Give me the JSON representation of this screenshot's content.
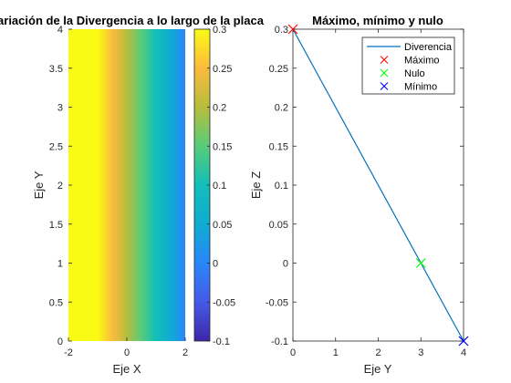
{
  "chart_data": [
    {
      "type": "heatmap",
      "title": "Variación de la Divergencia a lo largo de la placa",
      "xlabel": "Eje X",
      "ylabel": "Eje Y",
      "xlim": [
        -2,
        2
      ],
      "ylim": [
        0,
        4
      ],
      "xticks": [
        "-2",
        "0",
        "2"
      ],
      "yticks": [
        "0",
        "0.5",
        "1",
        "1.5",
        "2",
        "2.5",
        "3",
        "3.5",
        "4"
      ],
      "field": "linear in X: z = -0.1*(x - 2), constant in Y",
      "x_samples": [
        -2,
        -1.5,
        -1,
        -0.5,
        0,
        0.5,
        1,
        1.5,
        2
      ],
      "z_samples": [
        0.4,
        0.35,
        0.3,
        0.25,
        0.2,
        0.15,
        0.1,
        0.05,
        0.0
      ],
      "colormap": "parula",
      "colorbar": {
        "clim": [
          -0.1,
          0.3
        ],
        "ticks": [
          "0.3",
          "0.25",
          "0.2",
          "0.15",
          "0.1",
          "0.05",
          "0",
          "-0.05",
          "-0.1"
        ]
      }
    },
    {
      "type": "line",
      "title": "Máximo, mínimo y nulo",
      "xlabel": "Eje Y",
      "ylabel": "Eje Z",
      "xlim": [
        0,
        4
      ],
      "ylim": [
        -0.1,
        0.3
      ],
      "xticks": [
        "0",
        "1",
        "2",
        "3",
        "4"
      ],
      "yticks": [
        "0.3",
        "0.25",
        "0.2",
        "0.15",
        "0.1",
        "0.05",
        "0",
        "-0.05",
        "-0.1"
      ],
      "series": [
        {
          "name": "Diverencia",
          "kind": "line",
          "color": "#0072bd",
          "x": [
            0,
            4
          ],
          "y": [
            0.3,
            -0.1
          ]
        },
        {
          "name": "Máximo",
          "kind": "marker",
          "color": "#ff0000",
          "x": [
            0
          ],
          "y": [
            0.3
          ]
        },
        {
          "name": "Nulo",
          "kind": "marker",
          "color": "#00ff00",
          "x": [
            3
          ],
          "y": [
            0
          ]
        },
        {
          "name": "Mínimo",
          "kind": "marker",
          "color": "#0000ff",
          "x": [
            4
          ],
          "y": [
            -0.1
          ]
        }
      ],
      "legend": "top-right"
    }
  ]
}
